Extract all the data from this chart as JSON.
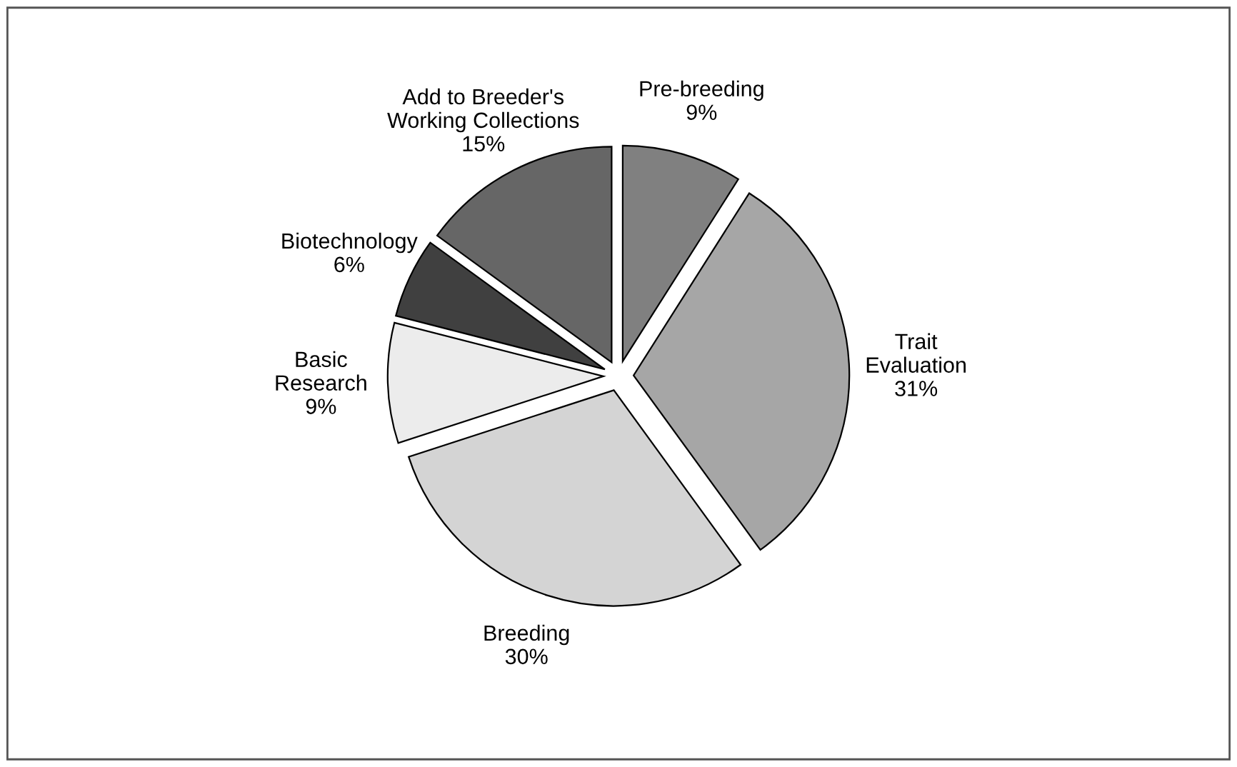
{
  "chart_data": {
    "type": "pie",
    "categories": [
      "Pre-breeding",
      "Trait\nEvaluation",
      "Breeding",
      "Basic\nResearch",
      "Biotechnology",
      "Add to Breeder's\nWorking Collections"
    ],
    "values": [
      9,
      31,
      30,
      9,
      6,
      15
    ],
    "value_labels": [
      "9%",
      "31%",
      "30%",
      "9%",
      "6%",
      "15%"
    ],
    "colors": [
      "#808080",
      "#a6a6a6",
      "#d4d4d4",
      "#ececec",
      "#404040",
      "#666666"
    ],
    "legend": false
  }
}
